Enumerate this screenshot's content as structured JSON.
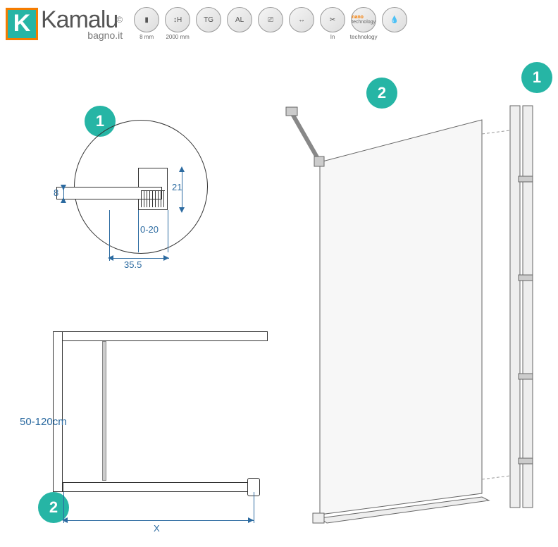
{
  "brand": {
    "logo_letter": "K",
    "name": "Kamalu",
    "subtitle": "bagno.it",
    "copyright": "©"
  },
  "colors": {
    "accent": "#26b5a5",
    "accent_orange": "#f57c00",
    "dim_line": "#2b6aa0",
    "stroke": "#333333",
    "background": "#ffffff"
  },
  "spec_icons": [
    {
      "glyph": "▮",
      "label": "8 mm"
    },
    {
      "glyph": "↕H",
      "label": "2000 mm"
    },
    {
      "glyph": "TG",
      "label": ""
    },
    {
      "glyph": "AL",
      "label": ""
    },
    {
      "glyph": "⎚",
      "label": ""
    },
    {
      "glyph": "↔",
      "label": ""
    },
    {
      "glyph": "✂",
      "label": "In"
    },
    {
      "glyph": "nano",
      "label": "technology",
      "nano": true
    },
    {
      "glyph": "💧",
      "label": ""
    }
  ],
  "badges": {
    "detail_1": "1",
    "arm_2": "2",
    "profile_1": "1",
    "topview_2": "2"
  },
  "dimensions": {
    "glass_thickness": "8",
    "channel_height": "21",
    "adjustment": "0-20",
    "profile_width": "35.5",
    "brace_length": "50-120cm",
    "panel_width": "X"
  },
  "diagram": {
    "type": "technical-drawing",
    "components": [
      {
        "id": 1,
        "name": "wall-profile",
        "detail": "U-channel 35.5mm wide, 21mm tall, 8mm glass, 0-20mm adjust"
      },
      {
        "id": 2,
        "name": "support-bar",
        "length_range_cm": [
          50,
          120
        ]
      }
    ],
    "main_view": "isometric glass panel with wall profile and angled support arm"
  }
}
